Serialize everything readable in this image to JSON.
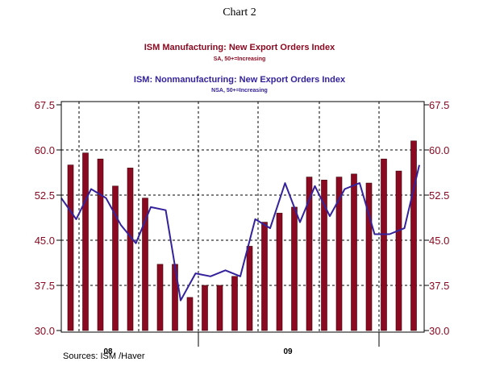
{
  "heading": "Chart 2",
  "source": "Sources: ISM /Haver",
  "colors": {
    "manufacturing": "#8b0a21",
    "nonmanufacturing": "#33229c",
    "axis_labels": "#8b0a21",
    "grid": "#000000"
  },
  "chart_data": {
    "type": "bar",
    "titles": [
      {
        "text": "ISM Manufacturing: New Export Orders Index",
        "color": "#8b0a21"
      },
      {
        "text": "SA, 50+=Increasing",
        "color": "#8b0a21"
      },
      {
        "text": "ISM: Nonmanufacturing: New Export Orders Index",
        "color": "#33229c"
      },
      {
        "text": "NSA, 50+=Increasing",
        "color": "#33229c"
      }
    ],
    "ylim": [
      30.0,
      67.5
    ],
    "yticks": [
      "30.0",
      "37.5",
      "45.0",
      "52.5",
      "60.0",
      "67.5"
    ],
    "x_tick_labels": [
      "08",
      "09"
    ],
    "grid": true,
    "series": [
      {
        "name": "ISM Manufacturing: New Export Orders Index",
        "kind": "bar",
        "color": "#8b0a21",
        "values": [
          57.5,
          59.5,
          58.5,
          54.0,
          57.0,
          52.0,
          41.0,
          41.0,
          35.5,
          37.5,
          37.5,
          39.0,
          44.0,
          48.0,
          49.5,
          50.5,
          55.5,
          55.0,
          55.5,
          56.0,
          54.5,
          58.5,
          56.5,
          61.5
        ]
      },
      {
        "name": "ISM: Nonmanufacturing: New Export Orders Index",
        "kind": "line",
        "color": "#33229c",
        "values": [
          52.0,
          48.5,
          53.5,
          52.0,
          47.5,
          44.5,
          50.5,
          50.0,
          35.0,
          39.5,
          39.0,
          40.0,
          39.0,
          48.5,
          47.0,
          54.5,
          48.0,
          54.0,
          49.0,
          53.5,
          54.5,
          46.0,
          46.0,
          47.0,
          57.5
        ]
      }
    ]
  }
}
